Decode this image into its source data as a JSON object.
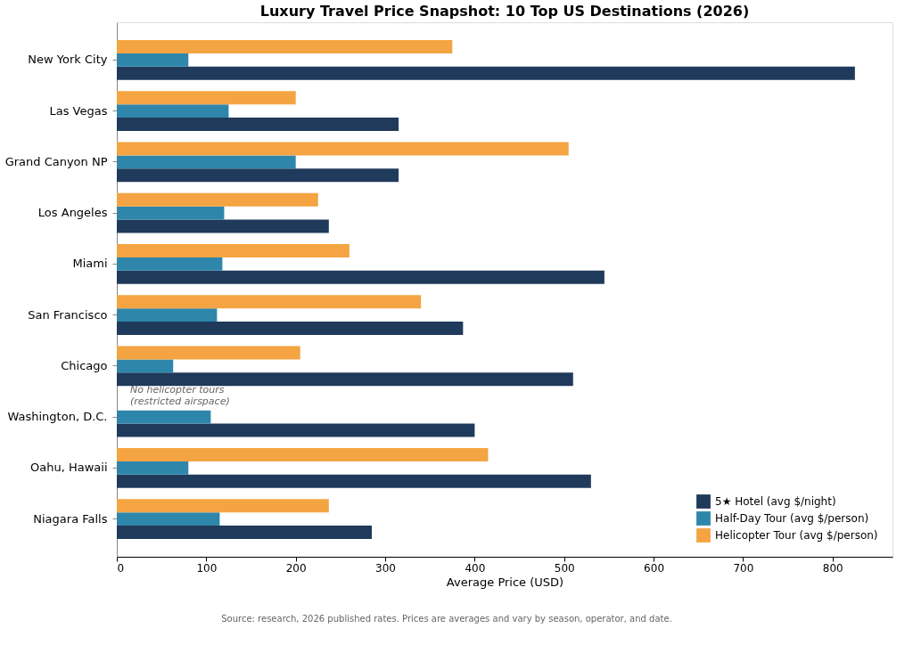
{
  "chart_data": {
    "type": "bar",
    "orientation": "horizontal",
    "title": "Luxury Travel Price Snapshot: 10 Top US Destinations (2026)",
    "xlabel": "Average Price (USD)",
    "categories": [
      "New York City",
      "Las Vegas",
      "Grand Canyon NP",
      "Los Angeles",
      "Miami",
      "San Francisco",
      "Chicago",
      "Washington, D.C.",
      "Oahu, Hawaii",
      "Niagara Falls"
    ],
    "series": [
      {
        "name": "5★ Hotel (avg $/night)",
        "color": "#1f3a5a",
        "values": [
          825,
          315,
          315,
          237,
          545,
          387,
          510,
          400,
          530,
          285
        ]
      },
      {
        "name": "Half-Day Tour (avg $/person)",
        "color": "#2e86ab",
        "values": [
          80,
          125,
          200,
          120,
          118,
          112,
          63,
          105,
          80,
          115
        ]
      },
      {
        "name": "Helicopter Tour (avg $/person)",
        "color": "#f4a442",
        "values": [
          375,
          200,
          505,
          225,
          260,
          340,
          205,
          null,
          415,
          237
        ]
      }
    ],
    "xlim": [
      0,
      867
    ],
    "xticks": [
      0,
      100,
      200,
      300,
      400,
      500,
      600,
      700,
      800
    ],
    "grid": false,
    "legend": "bottom right",
    "annotations": [
      "No helicopter tours\n(restricted airspace)",
      "Source: research, 2026 published rates. Prices are averages and vary by season, operator, and date."
    ]
  }
}
